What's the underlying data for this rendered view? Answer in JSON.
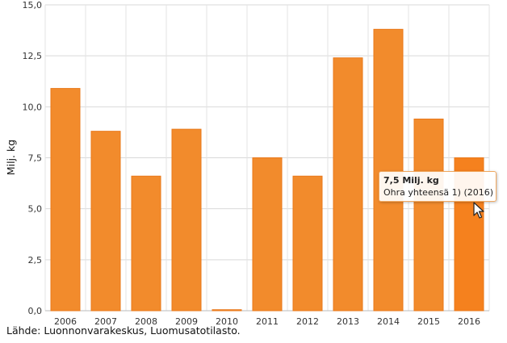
{
  "chart_data": {
    "type": "bar",
    "categories": [
      "2006",
      "2007",
      "2008",
      "2009",
      "2010",
      "2011",
      "2012",
      "2013",
      "2014",
      "2015",
      "2016"
    ],
    "values": [
      10.9,
      8.8,
      6.6,
      8.9,
      0.05,
      7.5,
      6.6,
      12.4,
      13.8,
      9.4,
      7.5
    ],
    "ylabel": "Milj. kg",
    "xlabel": "",
    "ylim": [
      0,
      15
    ],
    "yticks": [
      "0,0",
      "2,5",
      "5,0",
      "7,5",
      "10,0",
      "12,5",
      "15,0"
    ],
    "grid": true,
    "bar_color": "#f28b2c",
    "highlight_color": "#f5811e"
  },
  "tooltip": {
    "value": "7,5 Milj. kg",
    "label": "Ohra yhteensä 1) (2016)"
  },
  "source": "Lähde: Luonnonvarakeskus, Luomusatotilasto."
}
